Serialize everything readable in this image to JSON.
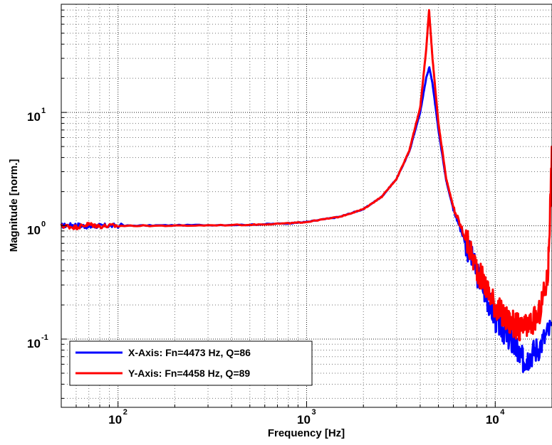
{
  "chart_data": {
    "type": "line",
    "title": "",
    "xlabel": "Frequency [Hz]",
    "ylabel": "Magnitude [norm.]",
    "x_scale": "log",
    "y_scale": "log",
    "xlim": [
      50,
      20000
    ],
    "ylim": [
      0.025,
      90
    ],
    "x_ticks": [
      {
        "value": 100,
        "base": "10",
        "exp": "2"
      },
      {
        "value": 1000,
        "base": "10",
        "exp": "3"
      },
      {
        "value": 10000,
        "base": "10",
        "exp": "4"
      }
    ],
    "y_ticks": [
      {
        "value": 0.1,
        "base": "10",
        "exp": "-1"
      },
      {
        "value": 1,
        "base": "10",
        "exp": "0"
      },
      {
        "value": 10,
        "base": "10",
        "exp": "1"
      }
    ],
    "grid": true,
    "legend_position": "bottom-left",
    "series": [
      {
        "name": "X-Axis: Fn=4473 Hz, Q=86",
        "color": "#0000ff",
        "x": [
          50,
          60,
          70,
          80,
          100,
          200,
          500,
          800,
          1000,
          1500,
          2000,
          2500,
          3000,
          3500,
          4000,
          4300,
          4473,
          4650,
          5000,
          5500,
          6000,
          7000,
          8000,
          9000,
          10000,
          11000,
          12000,
          13000,
          14000,
          15000,
          17000,
          20000
        ],
        "y": [
          1.0,
          1.02,
          0.98,
          1.0,
          1.0,
          1.01,
          1.02,
          1.05,
          1.08,
          1.2,
          1.4,
          1.8,
          2.6,
          4.5,
          10.0,
          20.0,
          25.0,
          18.0,
          7.0,
          2.5,
          1.4,
          0.7,
          0.38,
          0.24,
          0.15,
          0.12,
          0.1,
          0.08,
          0.065,
          0.07,
          0.085,
          0.13
        ]
      },
      {
        "name": "Y-Axis: Fn=4458 Hz, Q=89",
        "color": "#ff0000",
        "x": [
          50,
          60,
          70,
          80,
          100,
          200,
          500,
          800,
          1000,
          1500,
          2000,
          2500,
          3000,
          3500,
          4000,
          4300,
          4458,
          4650,
          5000,
          5500,
          6000,
          7000,
          8000,
          9000,
          10000,
          11000,
          12000,
          13000,
          14000,
          15000,
          17000,
          19000,
          20000
        ],
        "y": [
          1.0,
          0.97,
          1.03,
          0.99,
          1.0,
          1.0,
          1.02,
          1.05,
          1.08,
          1.2,
          1.4,
          1.8,
          2.6,
          4.6,
          11.0,
          35.0,
          80.0,
          30.0,
          8.0,
          2.6,
          1.45,
          0.75,
          0.42,
          0.28,
          0.2,
          0.16,
          0.14,
          0.13,
          0.12,
          0.13,
          0.16,
          0.35,
          4.5
        ]
      }
    ]
  }
}
